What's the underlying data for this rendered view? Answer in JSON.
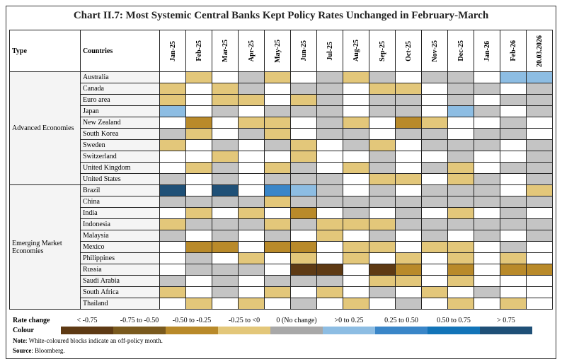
{
  "chart_data": {
    "type": "heatmap",
    "title": "Chart II.7: Most Systemic Central Banks Kept Policy Rates Unchanged in February-March",
    "header": {
      "type": "Type",
      "countries": "Countries"
    },
    "months": [
      "Jan-25",
      "Feb-25",
      "Mar-25",
      "Apr-25",
      "May-25",
      "Jun-25",
      "Jul-25",
      "Aug-25",
      "Sep-25",
      "Oct-25",
      "Nov-25",
      "Dec-25",
      "Jan-26",
      "Feb-26",
      "20.03.2026"
    ],
    "legend": {
      "rate_label": "Rate change",
      "colour_label": "Colour",
      "categories": [
        {
          "code": "A",
          "label": "< -0.75",
          "color": "#5e3a14"
        },
        {
          "code": "B",
          "label": "-0.75 to -0.50",
          "color": "#7a5a1e"
        },
        {
          "code": "C",
          "label": "-0.50 to -0.25",
          "color": "#b98a2a"
        },
        {
          "code": "D",
          "label": "-0.25 to <0",
          "color": "#e3c77a"
        },
        {
          "code": "N",
          "label": "0 (No change)",
          "color": "#c4c4c4"
        },
        {
          "code": "E",
          "label": ">0 to 0.25",
          "color": "#8dbde3"
        },
        {
          "code": "F",
          "label": "0.25 to 0.50",
          "color": "#3a86c8"
        },
        {
          "code": "G",
          "label": "0.50 to 0.75",
          "color": "#1274b8"
        },
        {
          "code": "H",
          "label": "> 0.75",
          "color": "#1f5077"
        }
      ]
    },
    "off_policy_color": "#ffffff",
    "groups": [
      {
        "type": "Advanced Economies",
        "rows": [
          {
            "country": "Australia",
            "values": [
              "W",
              "D",
              "W",
              "N",
              "D",
              "W",
              "N",
              "D",
              "N",
              "W",
              "N",
              "N",
              "W",
              "E",
              "E"
            ]
          },
          {
            "country": "Canada",
            "values": [
              "D",
              "W",
              "D",
              "N",
              "W",
              "N",
              "N",
              "W",
              "D",
              "D",
              "W",
              "N",
              "N",
              "W",
              "N"
            ]
          },
          {
            "country": "Euro area",
            "values": [
              "D",
              "W",
              "D",
              "D",
              "W",
              "D",
              "N",
              "W",
              "N",
              "N",
              "W",
              "N",
              "W",
              "N",
              "N"
            ]
          },
          {
            "country": "Japan",
            "values": [
              "E",
              "W",
              "N",
              "W",
              "N",
              "N",
              "N",
              "W",
              "N",
              "N",
              "W",
              "E",
              "N",
              "W",
              "N"
            ]
          },
          {
            "country": "New Zealand",
            "values": [
              "W",
              "C",
              "W",
              "D",
              "D",
              "W",
              "N",
              "D",
              "W",
              "C",
              "D",
              "W",
              "W",
              "N",
              "W"
            ]
          },
          {
            "country": "South Korea",
            "values": [
              "N",
              "D",
              "W",
              "N",
              "D",
              "W",
              "N",
              "N",
              "W",
              "N",
              "N",
              "W",
              "N",
              "N",
              "W"
            ]
          },
          {
            "country": "Sweden",
            "values": [
              "D",
              "W",
              "N",
              "W",
              "N",
              "D",
              "W",
              "N",
              "D",
              "W",
              "N",
              "N",
              "N",
              "W",
              "N"
            ]
          },
          {
            "country": "Switzerland",
            "values": [
              "W",
              "W",
              "D",
              "W",
              "W",
              "D",
              "W",
              "W",
              "N",
              "W",
              "W",
              "N",
              "W",
              "W",
              "N"
            ]
          },
          {
            "country": "United Kingdom",
            "values": [
              "W",
              "D",
              "N",
              "W",
              "D",
              "N",
              "W",
              "D",
              "N",
              "W",
              "N",
              "D",
              "W",
              "N",
              "N"
            ]
          },
          {
            "country": "United States",
            "values": [
              "N",
              "W",
              "N",
              "W",
              "N",
              "N",
              "N",
              "W",
              "D",
              "D",
              "W",
              "D",
              "N",
              "W",
              "N"
            ]
          }
        ]
      },
      {
        "type": "Emerging Market Economies",
        "rows": [
          {
            "country": "Brazil",
            "values": [
              "H",
              "W",
              "H",
              "W",
              "F",
              "E",
              "N",
              "W",
              "N",
              "W",
              "N",
              "N",
              "N",
              "W",
              "D"
            ]
          },
          {
            "country": "China",
            "values": [
              "N",
              "N",
              "N",
              "N",
              "D",
              "N",
              "N",
              "N",
              "N",
              "N",
              "N",
              "N",
              "N",
              "N",
              "N"
            ]
          },
          {
            "country": "India",
            "values": [
              "W",
              "D",
              "W",
              "D",
              "W",
              "C",
              "W",
              "N",
              "W",
              "N",
              "W",
              "D",
              "W",
              "N",
              "W"
            ]
          },
          {
            "country": "Indonesia",
            "values": [
              "D",
              "N",
              "N",
              "N",
              "D",
              "N",
              "D",
              "D",
              "D",
              "N",
              "N",
              "N",
              "N",
              "N",
              "N"
            ]
          },
          {
            "country": "Malaysia",
            "values": [
              "N",
              "W",
              "N",
              "W",
              "N",
              "W",
              "D",
              "W",
              "N",
              "W",
              "N",
              "W",
              "N",
              "W",
              "N"
            ]
          },
          {
            "country": "Mexico",
            "values": [
              "W",
              "C",
              "C",
              "W",
              "C",
              "C",
              "W",
              "D",
              "D",
              "W",
              "D",
              "D",
              "W",
              "N",
              "W"
            ]
          },
          {
            "country": "Philippines",
            "values": [
              "W",
              "N",
              "W",
              "D",
              "W",
              "D",
              "W",
              "D",
              "W",
              "D",
              "W",
              "D",
              "W",
              "D",
              "W"
            ]
          },
          {
            "country": "Russia",
            "values": [
              "W",
              "N",
              "N",
              "N",
              "W",
              "A",
              "A",
              "W",
              "A",
              "C",
              "W",
              "C",
              "W",
              "C",
              "C"
            ]
          },
          {
            "country": "Saudi Arabia",
            "values": [
              "N",
              "W",
              "N",
              "W",
              "N",
              "N",
              "N",
              "W",
              "D",
              "D",
              "W",
              "D",
              "W",
              "W",
              "W"
            ]
          },
          {
            "country": "South Africa",
            "values": [
              "D",
              "W",
              "N",
              "W",
              "D",
              "W",
              "D",
              "W",
              "N",
              "W",
              "D",
              "W",
              "N",
              "W",
              "W"
            ]
          },
          {
            "country": "Thailand",
            "values": [
              "W",
              "D",
              "W",
              "D",
              "W",
              "N",
              "W",
              "D",
              "W",
              "N",
              "W",
              "D",
              "W",
              "D",
              "W"
            ]
          }
        ]
      }
    ]
  },
  "note": {
    "label": "Note",
    "text": ": White-coloured blocks indicate an off-policy month."
  },
  "source": {
    "label": "Source",
    "text": ": Bloomberg."
  }
}
